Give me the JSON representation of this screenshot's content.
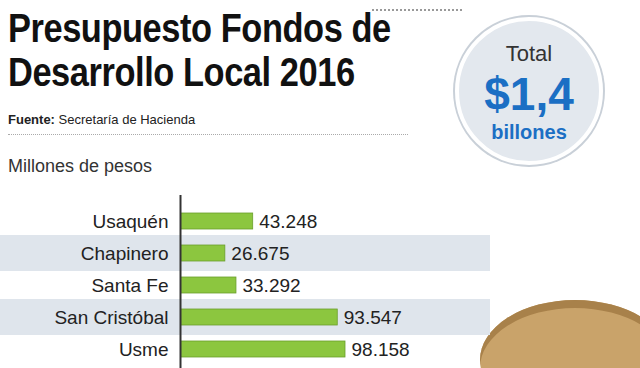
{
  "chart_data": {
    "type": "bar",
    "orientation": "horizontal",
    "title": "Presupuesto Fondos de Desarrollo Local 2016",
    "source_label": "Fuente:",
    "source": "Secretaría de Hacienda",
    "subtitle": "Millones de pesos",
    "annotations": [
      "Total",
      "$1,4",
      "billones"
    ],
    "categories": [
      "Usaquén",
      "Chapinero",
      "Santa Fe",
      "San Cristóbal",
      "Usme"
    ],
    "values": [
      43248,
      26675,
      33292,
      93547,
      98158
    ],
    "value_labels": [
      "43.248",
      "26.675",
      "33.292",
      "93.547",
      "98.158"
    ],
    "data_labels": true,
    "tick_labels": "y",
    "color": "#8cc63f"
  }
}
